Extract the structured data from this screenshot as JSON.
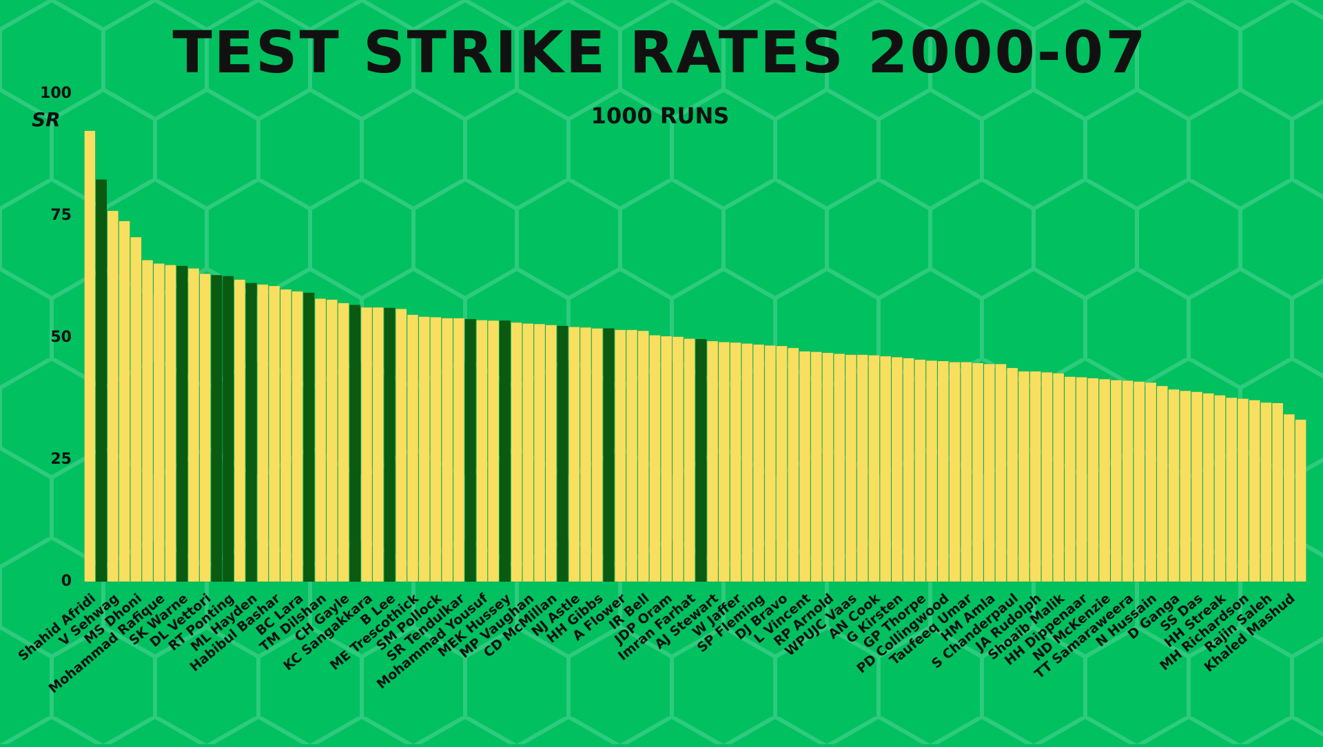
{
  "chart_data": {
    "type": "bar",
    "title": "TEST STRIKE RATES 2000-07",
    "subtitle": "1000 RUNS",
    "y_label": "SR",
    "categories": [
      "Shahid Afridi",
      null,
      "V Sehwag",
      null,
      "MS Dhoni",
      null,
      "Mohammad Rafique",
      null,
      "SK Warne",
      null,
      "DL Vettori",
      null,
      "RT Ponting",
      null,
      "ML Hayden",
      null,
      "Habibul Bashar",
      null,
      "BC Lara",
      null,
      "TM Dilshan",
      null,
      "CH Gayle",
      null,
      "KC Sangakkara",
      null,
      "B Lee",
      null,
      "ME Trescothick",
      null,
      "SM Pollock",
      null,
      "SR Tendulkar",
      null,
      "Mohammad Yousuf",
      null,
      "MEK Hussey",
      null,
      "MP Vaughan",
      null,
      "CD McMillan",
      null,
      "NJ Astle",
      null,
      "HH Gibbs",
      null,
      "A Flower",
      null,
      "IR Bell",
      null,
      "JDP Oram",
      null,
      "Imran Farhat",
      null,
      "AJ Stewart",
      null,
      "W Jaffer",
      null,
      "SP Fleming",
      null,
      "DJ Bravo",
      null,
      "L Vincent",
      null,
      "RP Arnold",
      null,
      "WPUJC Vaas",
      null,
      "AN Cook",
      null,
      "G Kirsten",
      null,
      "GP Thorpe",
      null,
      "PD Collingwood",
      null,
      "Taufeeq Umar",
      null,
      "HM Amla",
      null,
      "S Chanderpaul",
      null,
      "JA Rudolph",
      null,
      "Shoaib Malik",
      null,
      "HH Dippenaar",
      null,
      "ND McKenzie",
      null,
      "TT Samaraweera",
      null,
      "N Hussain",
      null,
      "D Ganga",
      null,
      "SS Das",
      null,
      "HH Streak",
      null,
      "MH Richardson",
      null,
      "Rajin Saleh",
      null,
      "Khaled Mashud",
      null
    ],
    "values": [
      92.4,
      82.4,
      76.0,
      73.9,
      70.6,
      65.9,
      65.2,
      64.9,
      64.7,
      64.2,
      63.1,
      62.8,
      62.6,
      61.9,
      61.2,
      60.9,
      60.6,
      59.9,
      59.5,
      59.2,
      58.0,
      57.8,
      57.1,
      56.7,
      56.2,
      56.2,
      56.1,
      55.9,
      54.7,
      54.3,
      54.2,
      54.0,
      54.0,
      53.8,
      53.6,
      53.5,
      53.5,
      53.1,
      52.9,
      52.8,
      52.6,
      52.4,
      52.2,
      52.1,
      51.9,
      51.9,
      51.6,
      51.6,
      51.4,
      50.5,
      50.3,
      50.2,
      49.8,
      49.7,
      49.3,
      49.1,
      49.0,
      48.8,
      48.6,
      48.4,
      48.3,
      47.9,
      47.2,
      47.1,
      46.9,
      46.7,
      46.5,
      46.5,
      46.4,
      46.2,
      46.0,
      45.8,
      45.5,
      45.3,
      45.2,
      45.0,
      45.0,
      44.8,
      44.6,
      44.6,
      43.8,
      43.1,
      43.1,
      42.9,
      42.7,
      42.0,
      41.9,
      41.7,
      41.5,
      41.3,
      41.2,
      41.0,
      40.8,
      40.1,
      39.4,
      39.1,
      38.9,
      38.6,
      38.2,
      37.7,
      37.5,
      37.2,
      36.7,
      36.6,
      34.3,
      33.2
    ],
    "colors": [
      "#f9df5f",
      "#0b5a12",
      "#f9df5f",
      "#f9df5f",
      "#f9df5f",
      "#f9df5f",
      "#f9df5f",
      "#f9df5f",
      "#0b5a12",
      "#f9df5f",
      "#f9df5f",
      "#0b5a12",
      "#0b5a12",
      "#f9df5f",
      "#0b5a12",
      "#f9df5f",
      "#f9df5f",
      "#f9df5f",
      "#f9df5f",
      "#0b5a12",
      "#f9df5f",
      "#f9df5f",
      "#f9df5f",
      "#0b5a12",
      "#f9df5f",
      "#f9df5f",
      "#0b5a12",
      "#f9df5f",
      "#f9df5f",
      "#f9df5f",
      "#f9df5f",
      "#f9df5f",
      "#f9df5f",
      "#0b5a12",
      "#f9df5f",
      "#f9df5f",
      "#0b5a12",
      "#f9df5f",
      "#f9df5f",
      "#f9df5f",
      "#f9df5f",
      "#0b5a12",
      "#f9df5f",
      "#f9df5f",
      "#f9df5f",
      "#0b5a12",
      "#f9df5f",
      "#f9df5f",
      "#f9df5f",
      "#f9df5f",
      "#f9df5f",
      "#f9df5f",
      "#f9df5f",
      "#0b5a12",
      "#f9df5f",
      "#f9df5f",
      "#f9df5f",
      "#f9df5f",
      "#f9df5f",
      "#f9df5f",
      "#f9df5f",
      "#f9df5f",
      "#f9df5f",
      "#f9df5f",
      "#f9df5f",
      "#f9df5f",
      "#f9df5f",
      "#f9df5f",
      "#f9df5f",
      "#f9df5f",
      "#f9df5f",
      "#f9df5f",
      "#f9df5f",
      "#f9df5f",
      "#f9df5f",
      "#f9df5f",
      "#f9df5f",
      "#f9df5f",
      "#f9df5f",
      "#f9df5f",
      "#f9df5f",
      "#f9df5f",
      "#f9df5f",
      "#f9df5f",
      "#f9df5f",
      "#f9df5f",
      "#f9df5f",
      "#f9df5f",
      "#f9df5f",
      "#f9df5f",
      "#f9df5f",
      "#f9df5f",
      "#f9df5f",
      "#f9df5f",
      "#f9df5f",
      "#f9df5f",
      "#f9df5f",
      "#f9df5f",
      "#f9df5f",
      "#f9df5f",
      "#f9df5f",
      "#f9df5f",
      "#f9df5f",
      "#f9df5f",
      "#f9df5f",
      "#f9df5f"
    ],
    "ylim": [
      0,
      100
    ],
    "yticks": [
      0,
      25,
      50,
      75,
      100
    ],
    "grid": false
  }
}
